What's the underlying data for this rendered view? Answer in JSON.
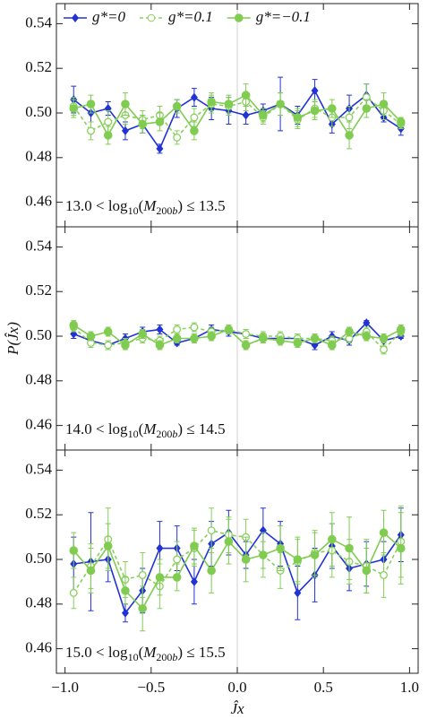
{
  "chart_data": [
    {
      "type": "line",
      "legend": "top-left",
      "annotation": [
        {
          "text": "13.0 < log"
        },
        {
          "text": "10",
          "style": "sub"
        },
        {
          "text": "("
        },
        {
          "text": "M",
          "style": "italic"
        },
        {
          "text": "200",
          "style": "sub"
        },
        {
          "text": "b",
          "style": "sub-italic"
        },
        {
          "text": ") ≤ 13.5"
        }
      ],
      "x": [
        -0.95,
        -0.85,
        -0.75,
        -0.65,
        -0.55,
        -0.45,
        -0.35,
        -0.25,
        -0.15,
        -0.05,
        0.05,
        0.15,
        0.25,
        0.35,
        0.45,
        0.55,
        0.65,
        0.75,
        0.85,
        0.95
      ],
      "xlim": [
        -1.05,
        1.05
      ],
      "xticks": [
        {
          "value": -1.0,
          "label": "−1.0"
        },
        {
          "value": -0.5,
          "label": "−0.5"
        },
        {
          "value": 0.0,
          "label": "0.0"
        },
        {
          "value": 0.5,
          "label": "0.5"
        },
        {
          "value": 1.0,
          "label": "1.0"
        }
      ],
      "ylim": [
        0.449,
        0.549
      ],
      "yticks": [
        0.46,
        0.48,
        {
          "value": 0.5,
          "label": "0.50"
        },
        0.52,
        0.54
      ],
      "reference_line_x": 0,
      "series": [
        {
          "name": "g*=0",
          "color": "#2233d6",
          "marker": "diamond",
          "dash": false,
          "values": [
            0.506,
            0.5,
            0.502,
            0.492,
            0.495,
            0.484,
            0.502,
            0.507,
            0.502,
            0.501,
            0.499,
            0.501,
            0.504,
            0.499,
            0.51,
            0.495,
            0.502,
            0.508,
            0.498,
            0.493
          ],
          "errors": [
            0.006,
            0.004,
            0.003,
            0.004,
            0.004,
            0.002,
            0.004,
            0.004,
            0.005,
            0.006,
            0.004,
            0.003,
            0.012,
            0.004,
            0.005,
            0.004,
            0.006,
            0.005,
            0.002,
            0.003
          ]
        },
        {
          "name": "g*=0.1",
          "color": "#88d05c",
          "marker": "open-circle",
          "dash": true,
          "values": [
            0.503,
            0.492,
            0.496,
            0.499,
            0.497,
            0.499,
            0.489,
            0.498,
            0.504,
            0.503,
            0.505,
            0.498,
            0.504,
            0.497,
            0.502,
            0.498,
            0.498,
            0.507,
            0.501,
            0.495
          ],
          "errors": [
            0.004,
            0.004,
            0.005,
            0.004,
            0.004,
            0.004,
            0.003,
            0.004,
            0.004,
            0.004,
            0.004,
            0.003,
            0.005,
            0.004,
            0.004,
            0.004,
            0.005,
            0.006,
            0.004,
            0.002
          ]
        },
        {
          "name": "g*=−0.1",
          "color": "#7fcc50",
          "marker": "circle",
          "dash": false,
          "values": [
            0.502,
            0.504,
            0.49,
            0.504,
            0.495,
            0.496,
            0.503,
            0.492,
            0.505,
            0.504,
            0.508,
            0.499,
            0.504,
            0.498,
            0.501,
            0.502,
            0.49,
            0.502,
            0.504,
            0.496
          ],
          "errors": [
            0.004,
            0.004,
            0.004,
            0.005,
            0.004,
            0.004,
            0.003,
            0.004,
            0.004,
            0.004,
            0.005,
            0.003,
            0.005,
            0.004,
            0.004,
            0.004,
            0.006,
            0.004,
            0.005,
            0.002
          ]
        }
      ]
    },
    {
      "type": "line",
      "annotation": [
        {
          "text": "14.0 < log"
        },
        {
          "text": "10",
          "style": "sub"
        },
        {
          "text": "("
        },
        {
          "text": "M",
          "style": "italic"
        },
        {
          "text": "200",
          "style": "sub"
        },
        {
          "text": "b",
          "style": "sub-italic"
        },
        {
          "text": ") ≤ 14.5"
        }
      ],
      "ylabel": "P(Ĵx)",
      "x": [
        -0.95,
        -0.85,
        -0.75,
        -0.65,
        -0.55,
        -0.45,
        -0.35,
        -0.25,
        -0.15,
        -0.05,
        0.05,
        0.15,
        0.25,
        0.35,
        0.45,
        0.55,
        0.65,
        0.75,
        0.85,
        0.95
      ],
      "xlim": [
        -1.05,
        1.05
      ],
      "xticks": [
        {
          "value": -1.0,
          "label": "−1.0"
        },
        {
          "value": -0.5,
          "label": "−0.5"
        },
        {
          "value": 0.0,
          "label": "0.0"
        },
        {
          "value": 0.5,
          "label": "0.5"
        },
        {
          "value": 1.0,
          "label": "1.0"
        }
      ],
      "ylim": [
        0.449,
        0.549
      ],
      "yticks": [
        0.46,
        0.48,
        {
          "value": 0.5,
          "label": "0.50"
        },
        0.52,
        0.54
      ],
      "reference_line_x": 0,
      "series": [
        {
          "name": "g*=0",
          "color": "#2233d6",
          "marker": "diamond",
          "dash": false,
          "values": [
            0.501,
            0.498,
            0.496,
            0.499,
            0.502,
            0.503,
            0.497,
            0.499,
            0.503,
            0.502,
            0.501,
            0.499,
            0.499,
            0.499,
            0.496,
            0.5,
            0.498,
            0.506,
            0.498,
            0.5
          ],
          "errors": [
            0.002,
            0.002,
            0.002,
            0.002,
            0.002,
            0.002,
            0.001,
            0.002,
            0.002,
            0.002,
            0.002,
            0.002,
            0.002,
            0.002,
            0.002,
            0.002,
            0.002,
            0.001,
            0.002,
            0.001
          ]
        },
        {
          "name": "g*=0.1",
          "color": "#88d05c",
          "marker": "open-circle",
          "dash": true,
          "values": [
            0.504,
            0.497,
            0.496,
            0.497,
            0.499,
            0.498,
            0.503,
            0.504,
            0.502,
            0.503,
            0.501,
            0.5,
            0.5,
            0.499,
            0.499,
            0.498,
            0.499,
            0.502,
            0.494,
            0.502
          ],
          "errors": [
            0.002,
            0.002,
            0.002,
            0.002,
            0.002,
            0.002,
            0.002,
            0.002,
            0.002,
            0.002,
            0.002,
            0.002,
            0.002,
            0.002,
            0.002,
            0.002,
            0.002,
            0.002,
            0.002,
            0.002
          ]
        },
        {
          "name": "g*=−0.1",
          "color": "#7fcc50",
          "marker": "circle",
          "dash": false,
          "values": [
            0.505,
            0.5,
            0.502,
            0.496,
            0.501,
            0.496,
            0.499,
            0.499,
            0.5,
            0.503,
            0.496,
            0.499,
            0.498,
            0.497,
            0.499,
            0.496,
            0.502,
            0.5,
            0.499,
            0.503
          ],
          "errors": [
            0.002,
            0.002,
            0.002,
            0.002,
            0.002,
            0.002,
            0.002,
            0.002,
            0.002,
            0.002,
            0.002,
            0.002,
            0.002,
            0.002,
            0.002,
            0.002,
            0.002,
            0.002,
            0.002,
            0.002
          ]
        }
      ]
    },
    {
      "type": "line",
      "annotation": [
        {
          "text": "15.0 < log"
        },
        {
          "text": "10",
          "style": "sub"
        },
        {
          "text": "("
        },
        {
          "text": "M",
          "style": "italic"
        },
        {
          "text": "200",
          "style": "sub"
        },
        {
          "text": "b",
          "style": "sub-italic"
        },
        {
          "text": ") ≤ 15.5"
        }
      ],
      "xlabel": "Ĵx",
      "x": [
        -0.95,
        -0.85,
        -0.75,
        -0.65,
        -0.55,
        -0.45,
        -0.35,
        -0.25,
        -0.15,
        -0.05,
        0.05,
        0.15,
        0.25,
        0.35,
        0.45,
        0.55,
        0.65,
        0.75,
        0.85,
        0.95
      ],
      "xlim": [
        -1.05,
        1.05
      ],
      "xticks": [
        {
          "value": -1.0,
          "label": "−1.0"
        },
        {
          "value": -0.5,
          "label": "−0.5"
        },
        {
          "value": 0.0,
          "label": "0.0"
        },
        {
          "value": 0.5,
          "label": "0.5"
        },
        {
          "value": 1.0,
          "label": "1.0"
        }
      ],
      "ylim": [
        0.449,
        0.549
      ],
      "yticks": [
        0.46,
        0.48,
        {
          "value": 0.5,
          "label": "0.50"
        },
        0.52,
        0.54
      ],
      "reference_line_x": 0,
      "series": [
        {
          "name": "g*=0",
          "color": "#2233d6",
          "marker": "diamond",
          "dash": false,
          "values": [
            0.498,
            0.499,
            0.5,
            0.476,
            0.486,
            0.505,
            0.505,
            0.49,
            0.507,
            0.512,
            0.502,
            0.513,
            0.507,
            0.485,
            0.493,
            0.506,
            0.496,
            0.498,
            0.5,
            0.511
          ],
          "errors": [
            0.012,
            0.022,
            0.01,
            0.004,
            0.01,
            0.012,
            0.01,
            0.01,
            0.01,
            0.01,
            0.006,
            0.01,
            0.01,
            0.012,
            0.012,
            0.01,
            0.01,
            0.01,
            0.008,
            0.012
          ]
        },
        {
          "name": "g*=0.1",
          "color": "#88d05c",
          "marker": "open-circle",
          "dash": true,
          "values": [
            0.485,
            0.497,
            0.509,
            0.491,
            0.493,
            0.488,
            0.5,
            0.505,
            0.513,
            0.511,
            0.51,
            0.502,
            0.495,
            0.499,
            0.503,
            0.504,
            0.499,
            0.497,
            0.493,
            0.508
          ],
          "errors": [
            0.007,
            0.01,
            0.014,
            0.008,
            0.01,
            0.01,
            0.008,
            0.008,
            0.01,
            0.008,
            0.008,
            0.01,
            0.008,
            0.01,
            0.01,
            0.012,
            0.01,
            0.012,
            0.01,
            0.016
          ]
        },
        {
          "name": "g*=−0.1",
          "color": "#7fcc50",
          "marker": "circle",
          "dash": false,
          "values": [
            0.504,
            0.495,
            0.506,
            0.486,
            0.478,
            0.492,
            0.492,
            0.506,
            0.495,
            0.508,
            0.5,
            0.502,
            0.505,
            0.5,
            0.502,
            0.509,
            0.505,
            0.495,
            0.512,
            0.505
          ],
          "errors": [
            0.008,
            0.01,
            0.01,
            0.006,
            0.01,
            0.008,
            0.006,
            0.008,
            0.01,
            0.01,
            0.01,
            0.006,
            0.01,
            0.01,
            0.01,
            0.012,
            0.014,
            0.01,
            0.01,
            0.016
          ]
        }
      ]
    }
  ]
}
